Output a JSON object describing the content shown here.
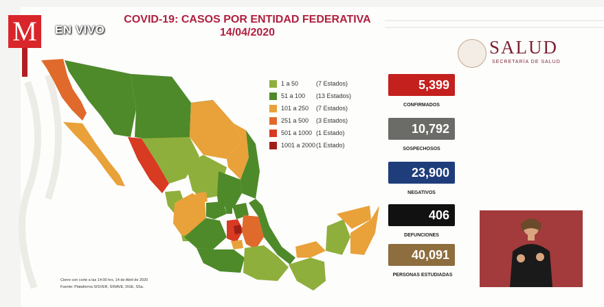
{
  "broadcast": {
    "brand_letter": "M",
    "live_label": "EN VIVO"
  },
  "header": {
    "title": "COVID-19: CASOS POR ENTIDAD FEDERATIVA",
    "date": "14/04/2020"
  },
  "salud": {
    "name": "SALUD",
    "subtitle": "SECRETARÍA DE SALUD"
  },
  "legend": [
    {
      "range": "1 a 50",
      "count": "(7 Estados)",
      "color": "#8faf3c"
    },
    {
      "range": "51 a 100",
      "count": "(13 Estados)",
      "color": "#4e8a2a"
    },
    {
      "range": "101 a 250",
      "count": "(7 Estados)",
      "color": "#e9a13a"
    },
    {
      "range": "251 a 500",
      "count": "(3 Estados)",
      "color": "#e06a2c"
    },
    {
      "range": "501 a 1000",
      "count": "(1 Estado)",
      "color": "#d83a22"
    },
    {
      "range": "1001 a 2000",
      "count": "(1 Estado)",
      "color": "#9e1f18"
    }
  ],
  "stats": [
    {
      "value": "5,399",
      "label": "CONFIRMADOS",
      "color": "#c3201e"
    },
    {
      "value": "10,792",
      "label": "SOSPECHOSOS",
      "color": "#6b6b68"
    },
    {
      "value": "23,900",
      "label": "NEGATIVOS",
      "color": "#1f3d7a"
    },
    {
      "value": "406",
      "label": "DEFUNCIONES",
      "color": "#111111"
    },
    {
      "value": "40,091",
      "label": "PERSONAS ESTUDIADAS",
      "color": "#8e6d3f"
    }
  ],
  "footer": {
    "line1": "Cierre con corte a las 14:00 hrs, 14 de Abril de 2020",
    "line2": "Fuente: Plataforma SISVER, SINAVE, DGE, SSa."
  }
}
